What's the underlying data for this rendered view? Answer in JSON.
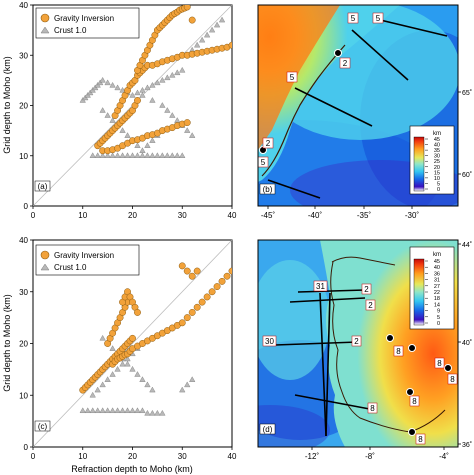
{
  "figure": {
    "colors": {
      "gravity": "#f2a23a",
      "gravity_edge": "#8a5a10",
      "crust": "#b8b8b8",
      "crust_edge": "#7a7a7a"
    }
  },
  "chart_data": [
    {
      "panel": "(a)",
      "type": "scatter",
      "xlim": [
        0,
        40
      ],
      "ylim": [
        0,
        40
      ],
      "xticks": [
        0,
        10,
        20,
        30,
        40
      ],
      "yticks": [
        0,
        10,
        20,
        30,
        40
      ],
      "ylabel": "Grid depth to Moho (km)",
      "xlabel": "",
      "reference_line": "1:1",
      "legend": [
        "Gravity Inversion",
        "Crust 1.0"
      ],
      "series": [
        {
          "name": "Gravity Inversion",
          "marker": "circle",
          "x": [
            13,
            13.5,
            14,
            14.5,
            15,
            15.5,
            16,
            16.5,
            17,
            17.5,
            18,
            18.5,
            19,
            19.5,
            20,
            20.5,
            21,
            14,
            15,
            16,
            17,
            18,
            19,
            20,
            21,
            22,
            23,
            24,
            25,
            26,
            27,
            28,
            29,
            30,
            31,
            16.5,
            17,
            17.5,
            18,
            18.5,
            19,
            19.5,
            20,
            20.5,
            21,
            21.5,
            22,
            22.5,
            23,
            24,
            25,
            26,
            27,
            28,
            29,
            30,
            31,
            32,
            33,
            34,
            35,
            36,
            37,
            38,
            39,
            40,
            21,
            21.5,
            22,
            22.5,
            23,
            23.5,
            24,
            24.5,
            25,
            25.5,
            26,
            26.5,
            27,
            27.5,
            28,
            28.5,
            29,
            29.5,
            30,
            30.5,
            31,
            32
          ],
          "y": [
            12,
            12.5,
            13,
            13.5,
            14,
            14.5,
            15,
            15.5,
            16,
            16.5,
            17,
            17.5,
            18,
            18.5,
            19,
            20,
            21,
            11,
            11,
            11.2,
            11.5,
            12,
            12.5,
            13,
            13.2,
            13.5,
            14,
            14.2,
            14.5,
            15,
            15.3,
            15.6,
            16,
            16.3,
            16.6,
            18,
            19,
            20,
            21,
            22,
            23,
            24,
            24.5,
            25,
            26,
            26.5,
            27,
            27.5,
            28,
            28,
            28.3,
            28.7,
            29,
            29.3,
            29.6,
            30,
            30,
            30.2,
            30.4,
            30.6,
            30.8,
            31,
            31.2,
            31.4,
            31.6,
            32,
            27,
            28,
            29,
            30,
            31,
            32,
            33,
            34,
            35,
            35.5,
            36,
            36.5,
            37,
            37.5,
            38,
            38.3,
            38.6,
            39,
            39.2,
            39.4,
            39.6,
            37
          ]
        },
        {
          "name": "Crust 1.0",
          "marker": "triangle",
          "x": [
            10,
            10.5,
            11,
            11.5,
            12,
            12.5,
            13,
            13.5,
            14,
            15,
            16,
            17,
            18,
            19,
            20,
            21,
            22,
            23,
            24,
            25,
            26,
            27,
            28,
            29,
            30,
            12,
            13,
            14,
            15,
            16,
            17,
            18,
            19,
            20,
            21,
            22,
            23,
            24,
            25,
            26,
            27,
            28,
            29,
            30,
            31,
            32,
            33,
            34,
            35,
            36,
            37,
            38,
            22,
            24,
            26,
            27,
            28,
            29,
            30,
            31,
            32,
            14,
            15,
            16,
            17,
            18,
            19,
            20,
            21,
            22,
            23,
            24,
            25,
            26
          ],
          "y": [
            21,
            21.5,
            22,
            22.5,
            23,
            23.5,
            24,
            24.5,
            25,
            24.5,
            24,
            23.5,
            23,
            22.5,
            22,
            22.5,
            23,
            23.5,
            24,
            24.5,
            25,
            25.5,
            26,
            26.5,
            27,
            10,
            10,
            10,
            10,
            10,
            10,
            10,
            10,
            10,
            10,
            10,
            10,
            10,
            10,
            10,
            10,
            10,
            10,
            10,
            30,
            31,
            32,
            33,
            34,
            35,
            36,
            37,
            22,
            21,
            20,
            19,
            18,
            17,
            16,
            15,
            14,
            19,
            18,
            17,
            16,
            15,
            14,
            13,
            12,
            11,
            12,
            13,
            14,
            15
          ]
        }
      ]
    },
    {
      "panel": "(b)",
      "type": "heatmap",
      "x_tick_labels": [
        "-45˚",
        "-40˚",
        "-35˚",
        "-30˚"
      ],
      "y_tick_labels": [
        "65˚",
        "60˚"
      ],
      "colorbar_title": "km",
      "colorbar_ticks": [
        45,
        40,
        35,
        30,
        25,
        20,
        15,
        10,
        5,
        0
      ],
      "profile_labels": [
        "5",
        "5",
        "5",
        "2",
        "2",
        "5"
      ]
    },
    {
      "panel": "(c)",
      "type": "scatter",
      "xlim": [
        0,
        40
      ],
      "ylim": [
        0,
        40
      ],
      "xticks": [
        0,
        10,
        20,
        30,
        40
      ],
      "yticks": [
        0,
        10,
        20,
        30,
        40
      ],
      "ylabel": "Grid depth to Moho (km)",
      "xlabel": "Refraction depth to Moho (km)",
      "reference_line": "1:1",
      "legend": [
        "Gravity Inversion",
        "Crust 1.0"
      ],
      "series": [
        {
          "name": "Gravity Inversion",
          "marker": "circle",
          "x": [
            10,
            10.5,
            11,
            11.5,
            12,
            12.5,
            13,
            13.5,
            14,
            14.5,
            15,
            15.5,
            16,
            16.5,
            17,
            17.5,
            18,
            18.5,
            19,
            19.5,
            20,
            15,
            15.5,
            16,
            16.5,
            17,
            17.5,
            18,
            18.5,
            19,
            16,
            16.5,
            17,
            17.5,
            18,
            18.5,
            19,
            19.5,
            20,
            21,
            22,
            23,
            24,
            25,
            26,
            27,
            28,
            29,
            30,
            31,
            32,
            33,
            34,
            35,
            36,
            37,
            38,
            39,
            40,
            30,
            31,
            32,
            33,
            18,
            18.5,
            19,
            19.5,
            20,
            20.5,
            21
          ],
          "y": [
            11,
            11.5,
            12,
            12.5,
            13,
            13.5,
            14,
            14.5,
            15,
            15.5,
            16,
            16.5,
            17,
            17.5,
            18,
            18.5,
            19,
            19.5,
            20,
            20.5,
            21,
            20,
            21,
            22,
            23,
            24,
            25,
            26,
            27,
            28,
            16,
            16.5,
            17,
            17.2,
            17.5,
            17.8,
            18,
            18.5,
            19,
            19.5,
            20,
            20.5,
            21,
            21.5,
            22,
            22.5,
            23,
            23.5,
            24,
            25,
            26,
            27,
            28,
            29,
            30,
            31,
            32,
            33,
            34,
            35,
            34,
            33,
            34,
            28,
            29,
            30,
            29,
            28,
            27,
            26
          ]
        },
        {
          "name": "Crust 1.0",
          "marker": "triangle",
          "x": [
            10,
            11,
            12,
            13,
            14,
            15,
            16,
            17,
            18,
            19,
            20,
            21,
            22,
            23,
            24,
            25,
            26,
            12,
            13,
            14,
            15,
            16,
            17,
            18,
            19,
            20,
            21,
            22,
            14,
            15,
            16,
            17,
            18,
            19,
            20,
            21,
            22,
            23,
            24,
            30,
            31,
            32
          ],
          "y": [
            7,
            7,
            7,
            7,
            7,
            7,
            7,
            7,
            7,
            7,
            7,
            7,
            7,
            6.5,
            6.5,
            6.5,
            6.5,
            10,
            11,
            12,
            13,
            14,
            15,
            16,
            17,
            18,
            19,
            20,
            21,
            20,
            19,
            18,
            17,
            16,
            15,
            14,
            13,
            12,
            11,
            11,
            12,
            13
          ]
        }
      ]
    },
    {
      "panel": "(d)",
      "type": "heatmap",
      "x_tick_labels": [
        "-12˚",
        "-8˚",
        "-4˚"
      ],
      "y_tick_labels": [
        "44˚",
        "40˚",
        "36˚"
      ],
      "colorbar_title": "km",
      "colorbar_ticks": [
        45,
        40,
        36,
        31,
        27,
        22,
        18,
        14,
        9,
        5,
        0
      ],
      "profile_labels": [
        "31",
        "30",
        "2",
        "2",
        "2",
        "8",
        "8",
        "8",
        "8",
        "8",
        "8"
      ]
    }
  ]
}
